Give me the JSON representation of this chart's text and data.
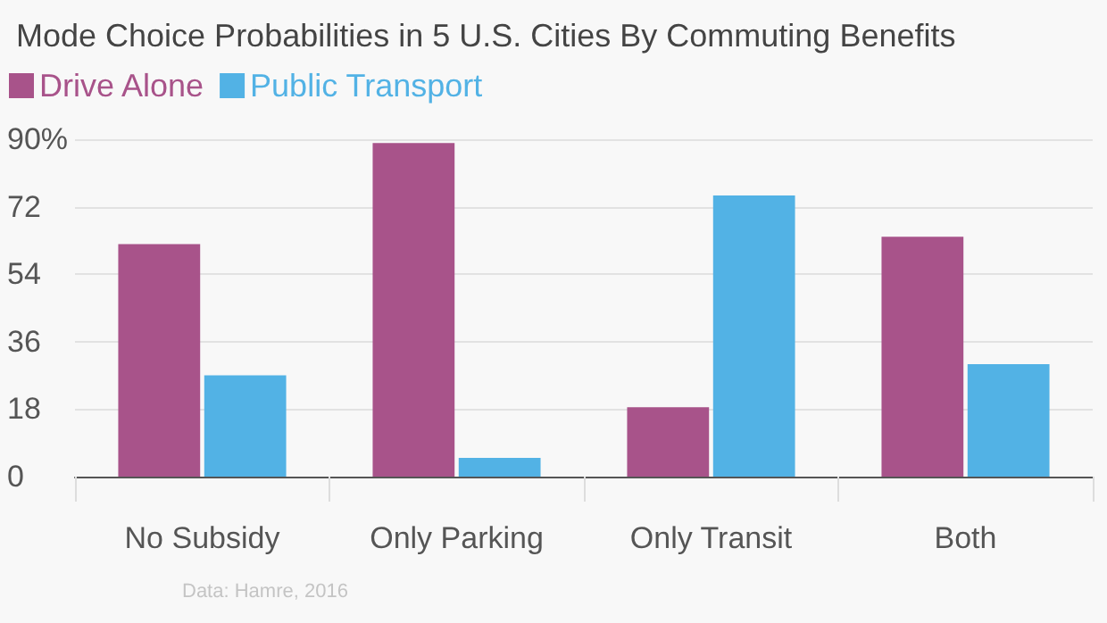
{
  "chart_data": {
    "type": "bar",
    "title": "Mode Choice Probabilities in 5 U.S. Cities By Commuting Benefits",
    "categories": [
      "No Subsidy",
      "Only Parking",
      "Only Transit",
      "Both"
    ],
    "series": [
      {
        "name": "Drive Alone",
        "color": "#a8538a",
        "values": [
          62,
          89,
          18.5,
          64
        ]
      },
      {
        "name": "Public Transport",
        "color": "#52b2e5",
        "values": [
          27,
          5,
          75,
          30
        ]
      }
    ],
    "ylim": [
      0,
      90
    ],
    "yticks": [
      0,
      18,
      36,
      54,
      72,
      {
        "value": 90,
        "label": "90%"
      }
    ],
    "grid": "y",
    "legend": "top left",
    "annotations": [
      "Data: Hamre, 2016"
    ]
  }
}
